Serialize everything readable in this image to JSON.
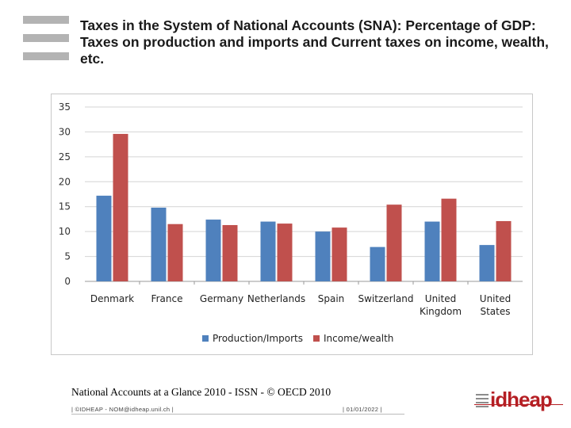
{
  "slide": {
    "title": "Taxes in the System of National Accounts (SNA): Percentage of GDP: Taxes on production and imports and Current taxes on income, wealth, etc.",
    "source": "National Accounts at a Glance 2010 - ISSN - © OECD 2010",
    "footer_left": "| ©IDHEAP - NOM@idheap.unil.ch |",
    "footer_date": "| 01/01/2022 |",
    "logo_text": "idheap"
  },
  "chart_data": {
    "type": "bar",
    "categories": [
      "Denmark",
      "France",
      "Germany",
      "Netherlands",
      "Spain",
      "Switzerland",
      "United Kingdom",
      "United States"
    ],
    "category_lines": [
      [
        "Denmark"
      ],
      [
        "France"
      ],
      [
        "Germany"
      ],
      [
        "Netherlands"
      ],
      [
        "Spain"
      ],
      [
        "Switzerland"
      ],
      [
        "United",
        "Kingdom"
      ],
      [
        "United",
        "States"
      ]
    ],
    "series": [
      {
        "name": "Production/Imports",
        "color": "#4f81bd",
        "values": [
          17.2,
          14.8,
          12.4,
          12.0,
          10.0,
          6.9,
          12.0,
          7.3
        ]
      },
      {
        "name": "Income/wealth",
        "color": "#c0504d",
        "values": [
          29.6,
          11.5,
          11.3,
          11.6,
          10.8,
          15.4,
          16.6,
          12.1
        ]
      }
    ],
    "yticks": [
      "0",
      "5",
      "10",
      "15",
      "20",
      "25",
      "30",
      "35"
    ],
    "ylim": [
      0,
      35
    ],
    "grid": true,
    "legend_position": "bottom",
    "title": "",
    "xlabel": "",
    "ylabel": ""
  }
}
